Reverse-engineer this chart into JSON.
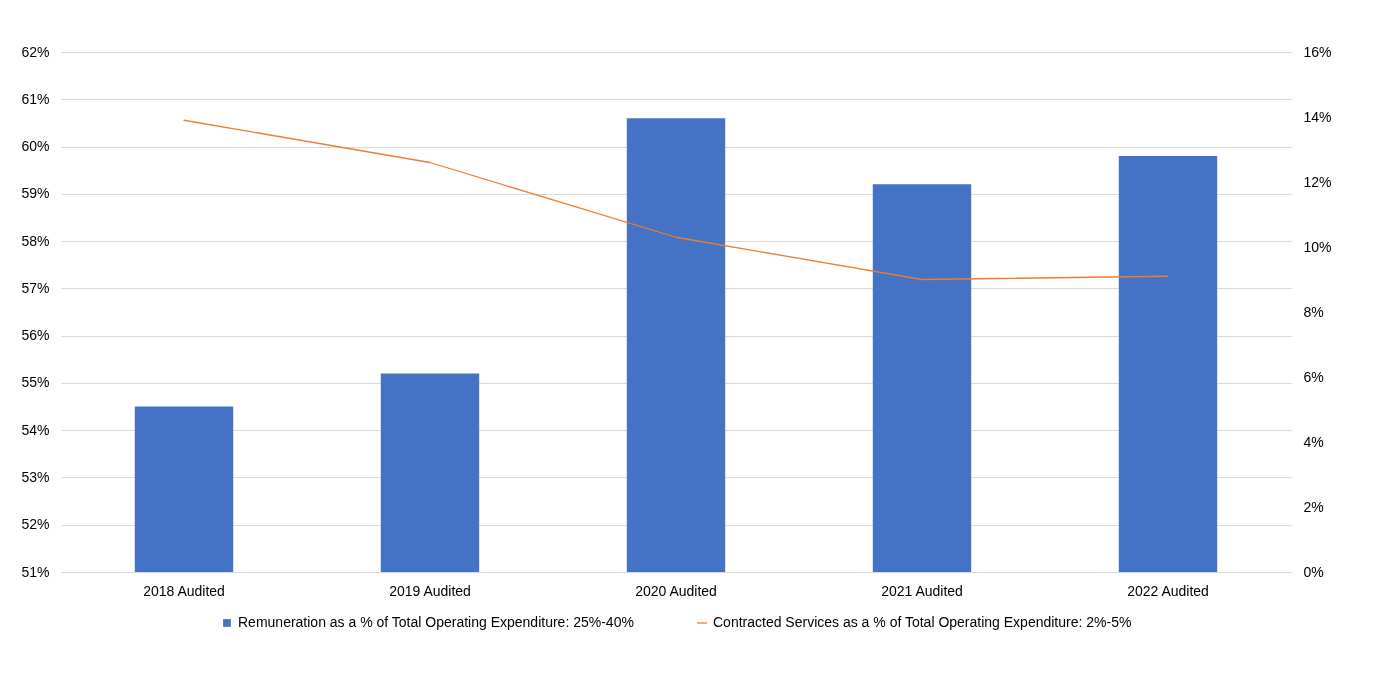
{
  "chart_data": {
    "type": "bar",
    "categories": [
      "2018 Audited",
      "2019 Audited",
      "2020 Audited",
      "2021 Audited",
      "2022 Audited"
    ],
    "series": [
      {
        "name": "Remuneration as a % of Total Operating Expenditure: 25%-40%",
        "color": "#4472c4",
        "values": [
          54.5,
          55.2,
          60.6,
          59.2,
          59.8
        ]
      },
      {
        "name": "Contracted Services as a % of Total Operating Expenditure: 2%-5%",
        "type": "line",
        "axis": "y2",
        "color": "#ed7d31",
        "values": [
          13.9,
          12.6,
          10.3,
          9.0,
          9.1
        ]
      }
    ],
    "ylim": [
      51,
      62
    ],
    "yticks": [
      {
        "value": 51,
        "label": "51%"
      },
      {
        "value": 52,
        "label": "52%"
      },
      {
        "value": 53,
        "label": "53%"
      },
      {
        "value": 54,
        "label": "54%"
      },
      {
        "value": 55,
        "label": "55%"
      },
      {
        "value": 56,
        "label": "56%"
      },
      {
        "value": 57,
        "label": "57%"
      },
      {
        "value": 58,
        "label": "58%"
      },
      {
        "value": 59,
        "label": "59%"
      },
      {
        "value": 60,
        "label": "60%"
      },
      {
        "value": 61,
        "label": "61%"
      },
      {
        "value": 62,
        "label": "62%"
      }
    ],
    "y2lim": [
      0,
      16
    ],
    "y2ticks": [
      {
        "value": 0,
        "label": "0%"
      },
      {
        "value": 2,
        "label": "2%"
      },
      {
        "value": 4,
        "label": "4%"
      },
      {
        "value": 6,
        "label": "6%"
      },
      {
        "value": 8,
        "label": "8%"
      },
      {
        "value": 10,
        "label": "10%"
      },
      {
        "value": 12,
        "label": "12%"
      },
      {
        "value": 14,
        "label": "14%"
      },
      {
        "value": 16,
        "label": "16%"
      }
    ],
    "grid": "y",
    "legend": "bottom"
  }
}
